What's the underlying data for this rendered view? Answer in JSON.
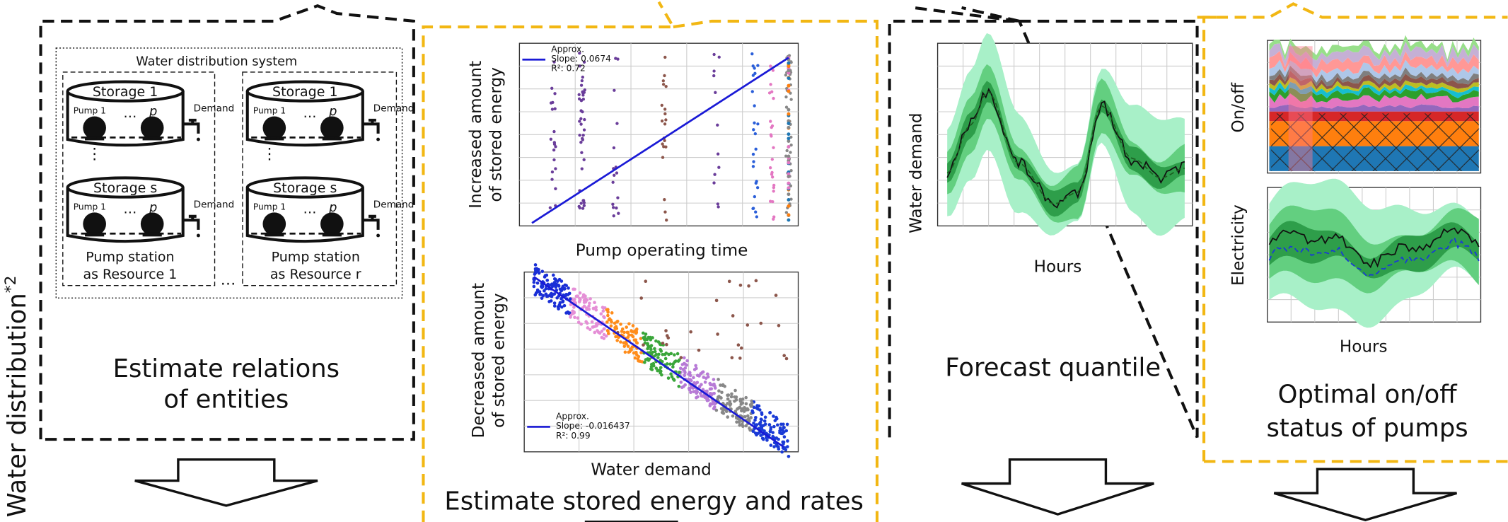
{
  "side_label": {
    "text": "Water distribution",
    "superscript": "*2"
  },
  "relations": {
    "system_title": "Water distribution system",
    "columns": [
      {
        "tanks": [
          {
            "storage": "Storage 1",
            "pump_first": "Pump 1",
            "pump_last": "p",
            "demand": "Demand"
          },
          {
            "storage": "Storage s",
            "pump_first": "Pump 1",
            "pump_last": "p",
            "demand": "Demand"
          }
        ],
        "station": [
          "Pump station",
          "as Resource 1"
        ]
      },
      {
        "tanks": [
          {
            "storage": "Storage 1",
            "pump_first": "Pump 1",
            "pump_last": "p",
            "demand": "Demand"
          },
          {
            "storage": "Storage s",
            "pump_first": "Pump 1",
            "pump_last": "p",
            "demand": "Demand"
          }
        ],
        "station": [
          "Pump station",
          "as Resource r"
        ]
      }
    ],
    "caption": [
      "Estimate relations",
      "of entities"
    ]
  },
  "stored_energy": {
    "charts": [
      {
        "y_label": [
          "Increased amount",
          "of stored energy"
        ],
        "x_label": "Pump operating time",
        "legend": [
          "Approx.",
          "Slope: 0.0674",
          "R²: 0.72"
        ]
      },
      {
        "y_label": [
          "Decreased amount",
          "of stored energy"
        ],
        "x_label": "Water demand",
        "legend": [
          "Approx.",
          "Slope: -0.016437",
          "R²: 0.99"
        ]
      }
    ],
    "caption": "Estimate stored energy and rates"
  },
  "forecast": {
    "y_label": "Water demand",
    "x_label": "Hours",
    "caption": "Forecast quantile"
  },
  "optimization": {
    "y_labels": [
      "On/off",
      "Electricity"
    ],
    "x_label": "Hours",
    "caption": [
      "Optimal on/off",
      "status of pumps"
    ]
  }
}
